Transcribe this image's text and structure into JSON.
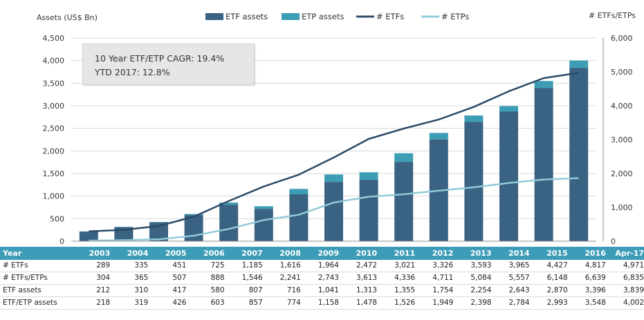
{
  "chart_data": {
    "type": "bar",
    "categories": [
      "2003",
      "2004",
      "2005",
      "2006",
      "2007",
      "2008",
      "2009",
      "2010",
      "2011",
      "2012",
      "2013",
      "2014",
      "2015",
      "2016",
      "Apr-17"
    ],
    "series": [
      {
        "name": "ETF assets",
        "type": "bar",
        "axis": "left",
        "color": "#3a6282",
        "values": [
          212,
          310,
          417,
          580,
          807,
          716,
          1041,
          1313,
          1355,
          1754,
          2254,
          2643,
          2870,
          3396,
          3839
        ]
      },
      {
        "name": "ETP assets",
        "type": "bar",
        "axis": "left",
        "color": "#3c9db5",
        "values": [
          218,
          319,
          426,
          603,
          857,
          774,
          1158,
          1478,
          1526,
          1949,
          2398,
          2784,
          2993,
          3548,
          4002
        ]
      },
      {
        "name": "# ETFs",
        "type": "line",
        "axis": "right",
        "color": "#2c4a66",
        "values": [
          289,
          335,
          451,
          725,
          1185,
          1616,
          1964,
          2472,
          3021,
          3326,
          3593,
          3965,
          4427,
          4817,
          4971
        ]
      },
      {
        "name": "# ETPs",
        "type": "line",
        "axis": "right",
        "color": "#92cbd8",
        "values": [
          15,
          30,
          55,
          163,
          361,
          625,
          779,
          1141,
          1315,
          1385,
          1491,
          1592,
          1721,
          1822,
          1864
        ]
      }
    ],
    "left_axis": {
      "label": "Assets (US$ Bn)",
      "ylim": [
        0,
        4500
      ],
      "ticks": [
        "0",
        "500",
        "1,000",
        "1,500",
        "2,000",
        "2,500",
        "3,000",
        "3,500",
        "4,000",
        "4,500"
      ]
    },
    "right_axis": {
      "label": "# ETFs/ETPs",
      "ylim": [
        0,
        6000
      ],
      "ticks": [
        "0",
        "1,000",
        "2,000",
        "3,000",
        "4,000",
        "5,000",
        "6,000"
      ]
    },
    "grid": true,
    "legend_placement": "top-center",
    "annotation": {
      "line1": "10 Year ETF/ETP CAGR: 19.4%",
      "line2": "YTD 2017: 12.8%"
    }
  },
  "table": {
    "header": [
      "Year",
      "2003",
      "2004",
      "2005",
      "2006",
      "2007",
      "2008",
      "2009",
      "2010",
      "2011",
      "2012",
      "2013",
      "2014",
      "2015",
      "2016",
      "Apr-17"
    ],
    "rows": [
      [
        "# ETFs",
        "289",
        "335",
        "451",
        "725",
        "1,185",
        "1,616",
        "1,964",
        "2,472",
        "3,021",
        "3,326",
        "3,593",
        "3,965",
        "4,427",
        "4,817",
        "4,971"
      ],
      [
        "# ETFs/ETPs",
        "304",
        "365",
        "507",
        "888",
        "1,546",
        "2,241",
        "2,743",
        "3,613",
        "4,336",
        "4,711",
        "5,084",
        "5,557",
        "6,148",
        "6,639",
        "6,835"
      ],
      [
        "ETF assets",
        "212",
        "310",
        "417",
        "580",
        "807",
        "716",
        "1,041",
        "1,313",
        "1,355",
        "1,754",
        "2,254",
        "2,643",
        "2,870",
        "3,396",
        "3,839"
      ],
      [
        "ETF/ETP assets",
        "218",
        "319",
        "426",
        "603",
        "857",
        "774",
        "1,158",
        "1,478",
        "1,526",
        "1,949",
        "2,398",
        "2,784",
        "2,993",
        "3,548",
        "4,002"
      ]
    ]
  }
}
